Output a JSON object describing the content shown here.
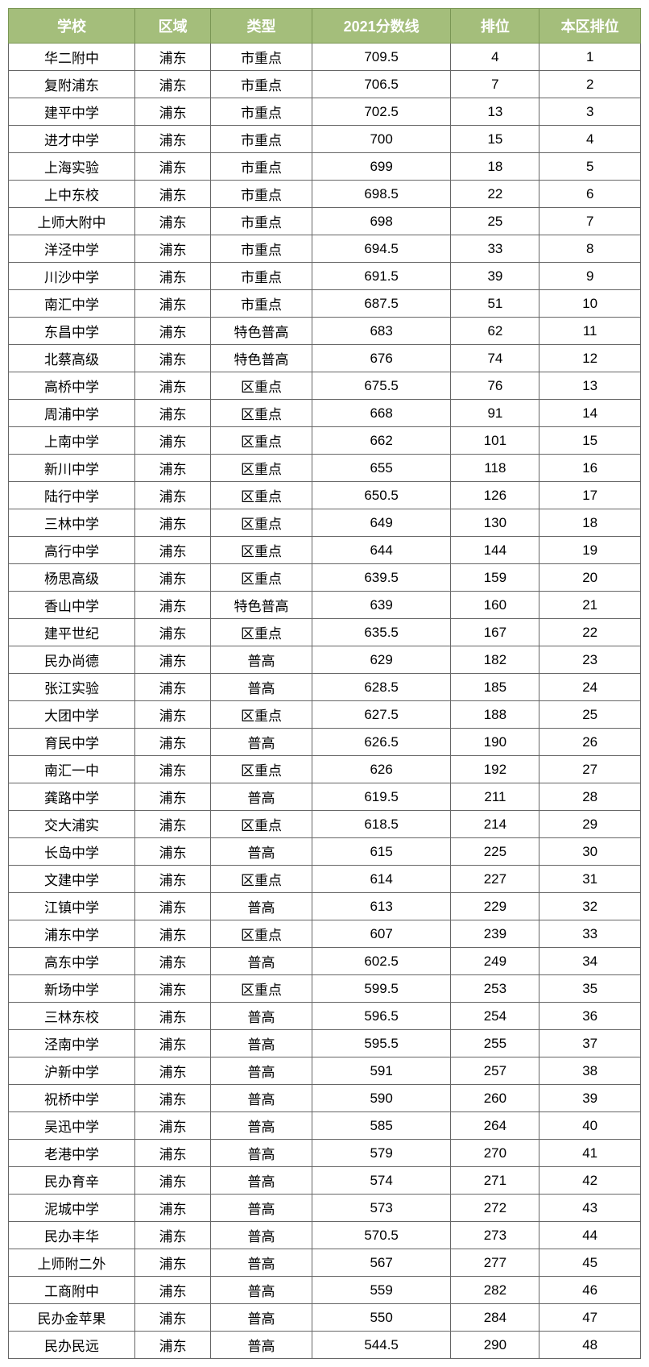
{
  "table": {
    "type": "table",
    "header_bg_color": "#a4be7b",
    "header_text_color": "#ffffff",
    "header_fontsize": 18,
    "cell_fontsize": 17,
    "border_color": "#666666",
    "background_color": "#ffffff",
    "columns": [
      {
        "key": "school",
        "label": "学校",
        "width": "20%"
      },
      {
        "key": "district",
        "label": "区域",
        "width": "12%"
      },
      {
        "key": "type",
        "label": "类型",
        "width": "16%"
      },
      {
        "key": "score",
        "label": "2021分数线",
        "width": "22%"
      },
      {
        "key": "rank",
        "label": "排位",
        "width": "14%"
      },
      {
        "key": "localrank",
        "label": "本区排位",
        "width": "16%"
      }
    ],
    "rows": [
      {
        "school": "华二附中",
        "district": "浦东",
        "type": "市重点",
        "score": "709.5",
        "rank": "4",
        "localrank": "1"
      },
      {
        "school": "复附浦东",
        "district": "浦东",
        "type": "市重点",
        "score": "706.5",
        "rank": "7",
        "localrank": "2"
      },
      {
        "school": "建平中学",
        "district": "浦东",
        "type": "市重点",
        "score": "702.5",
        "rank": "13",
        "localrank": "3"
      },
      {
        "school": "进才中学",
        "district": "浦东",
        "type": "市重点",
        "score": "700",
        "rank": "15",
        "localrank": "4"
      },
      {
        "school": "上海实验",
        "district": "浦东",
        "type": "市重点",
        "score": "699",
        "rank": "18",
        "localrank": "5"
      },
      {
        "school": "上中东校",
        "district": "浦东",
        "type": "市重点",
        "score": "698.5",
        "rank": "22",
        "localrank": "6"
      },
      {
        "school": "上师大附中",
        "district": "浦东",
        "type": "市重点",
        "score": "698",
        "rank": "25",
        "localrank": "7"
      },
      {
        "school": "洋泾中学",
        "district": "浦东",
        "type": "市重点",
        "score": "694.5",
        "rank": "33",
        "localrank": "8"
      },
      {
        "school": "川沙中学",
        "district": "浦东",
        "type": "市重点",
        "score": "691.5",
        "rank": "39",
        "localrank": "9"
      },
      {
        "school": "南汇中学",
        "district": "浦东",
        "type": "市重点",
        "score": "687.5",
        "rank": "51",
        "localrank": "10"
      },
      {
        "school": "东昌中学",
        "district": "浦东",
        "type": "特色普高",
        "score": "683",
        "rank": "62",
        "localrank": "11"
      },
      {
        "school": "北蔡高级",
        "district": "浦东",
        "type": "特色普高",
        "score": "676",
        "rank": "74",
        "localrank": "12"
      },
      {
        "school": "高桥中学",
        "district": "浦东",
        "type": "区重点",
        "score": "675.5",
        "rank": "76",
        "localrank": "13"
      },
      {
        "school": "周浦中学",
        "district": "浦东",
        "type": "区重点",
        "score": "668",
        "rank": "91",
        "localrank": "14"
      },
      {
        "school": "上南中学",
        "district": "浦东",
        "type": "区重点",
        "score": "662",
        "rank": "101",
        "localrank": "15"
      },
      {
        "school": "新川中学",
        "district": "浦东",
        "type": "区重点",
        "score": "655",
        "rank": "118",
        "localrank": "16"
      },
      {
        "school": "陆行中学",
        "district": "浦东",
        "type": "区重点",
        "score": "650.5",
        "rank": "126",
        "localrank": "17"
      },
      {
        "school": "三林中学",
        "district": "浦东",
        "type": "区重点",
        "score": "649",
        "rank": "130",
        "localrank": "18"
      },
      {
        "school": "高行中学",
        "district": "浦东",
        "type": "区重点",
        "score": "644",
        "rank": "144",
        "localrank": "19"
      },
      {
        "school": "杨思高级",
        "district": "浦东",
        "type": "区重点",
        "score": "639.5",
        "rank": "159",
        "localrank": "20"
      },
      {
        "school": "香山中学",
        "district": "浦东",
        "type": "特色普高",
        "score": "639",
        "rank": "160",
        "localrank": "21"
      },
      {
        "school": "建平世纪",
        "district": "浦东",
        "type": "区重点",
        "score": "635.5",
        "rank": "167",
        "localrank": "22"
      },
      {
        "school": "民办尚德",
        "district": "浦东",
        "type": "普高",
        "score": "629",
        "rank": "182",
        "localrank": "23"
      },
      {
        "school": "张江实验",
        "district": "浦东",
        "type": "普高",
        "score": "628.5",
        "rank": "185",
        "localrank": "24"
      },
      {
        "school": "大团中学",
        "district": "浦东",
        "type": "区重点",
        "score": "627.5",
        "rank": "188",
        "localrank": "25"
      },
      {
        "school": "育民中学",
        "district": "浦东",
        "type": "普高",
        "score": "626.5",
        "rank": "190",
        "localrank": "26"
      },
      {
        "school": "南汇一中",
        "district": "浦东",
        "type": "区重点",
        "score": "626",
        "rank": "192",
        "localrank": "27"
      },
      {
        "school": "龚路中学",
        "district": "浦东",
        "type": "普高",
        "score": "619.5",
        "rank": "211",
        "localrank": "28"
      },
      {
        "school": "交大浦实",
        "district": "浦东",
        "type": "区重点",
        "score": "618.5",
        "rank": "214",
        "localrank": "29"
      },
      {
        "school": "长岛中学",
        "district": "浦东",
        "type": "普高",
        "score": "615",
        "rank": "225",
        "localrank": "30"
      },
      {
        "school": "文建中学",
        "district": "浦东",
        "type": "区重点",
        "score": "614",
        "rank": "227",
        "localrank": "31"
      },
      {
        "school": "江镇中学",
        "district": "浦东",
        "type": "普高",
        "score": "613",
        "rank": "229",
        "localrank": "32"
      },
      {
        "school": "浦东中学",
        "district": "浦东",
        "type": "区重点",
        "score": "607",
        "rank": "239",
        "localrank": "33"
      },
      {
        "school": "高东中学",
        "district": "浦东",
        "type": "普高",
        "score": "602.5",
        "rank": "249",
        "localrank": "34"
      },
      {
        "school": "新场中学",
        "district": "浦东",
        "type": "区重点",
        "score": "599.5",
        "rank": "253",
        "localrank": "35"
      },
      {
        "school": "三林东校",
        "district": "浦东",
        "type": "普高",
        "score": "596.5",
        "rank": "254",
        "localrank": "36"
      },
      {
        "school": "泾南中学",
        "district": "浦东",
        "type": "普高",
        "score": "595.5",
        "rank": "255",
        "localrank": "37"
      },
      {
        "school": "沪新中学",
        "district": "浦东",
        "type": "普高",
        "score": "591",
        "rank": "257",
        "localrank": "38"
      },
      {
        "school": "祝桥中学",
        "district": "浦东",
        "type": "普高",
        "score": "590",
        "rank": "260",
        "localrank": "39"
      },
      {
        "school": "吴迅中学",
        "district": "浦东",
        "type": "普高",
        "score": "585",
        "rank": "264",
        "localrank": "40"
      },
      {
        "school": "老港中学",
        "district": "浦东",
        "type": "普高",
        "score": "579",
        "rank": "270",
        "localrank": "41"
      },
      {
        "school": "民办育辛",
        "district": "浦东",
        "type": "普高",
        "score": "574",
        "rank": "271",
        "localrank": "42"
      },
      {
        "school": "泥城中学",
        "district": "浦东",
        "type": "普高",
        "score": "573",
        "rank": "272",
        "localrank": "43"
      },
      {
        "school": "民办丰华",
        "district": "浦东",
        "type": "普高",
        "score": "570.5",
        "rank": "273",
        "localrank": "44"
      },
      {
        "school": "上师附二外",
        "district": "浦东",
        "type": "普高",
        "score": "567",
        "rank": "277",
        "localrank": "45"
      },
      {
        "school": "工商附中",
        "district": "浦东",
        "type": "普高",
        "score": "559",
        "rank": "282",
        "localrank": "46"
      },
      {
        "school": "民办金苹果",
        "district": "浦东",
        "type": "普高",
        "score": "550",
        "rank": "284",
        "localrank": "47"
      },
      {
        "school": "民办民远",
        "district": "浦东",
        "type": "普高",
        "score": "544.5",
        "rank": "290",
        "localrank": "48"
      }
    ]
  }
}
